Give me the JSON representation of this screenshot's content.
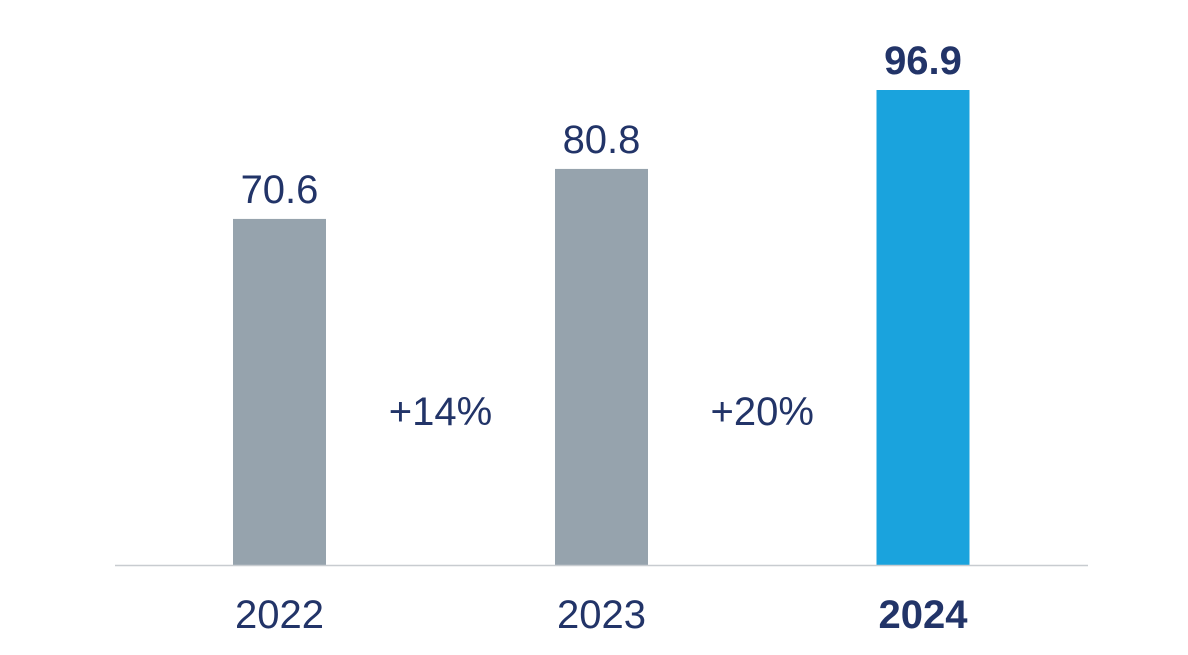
{
  "chart_data": {
    "type": "bar",
    "categories": [
      "2022",
      "2023",
      "2024"
    ],
    "values": [
      70.6,
      80.8,
      96.9
    ],
    "value_labels": [
      "70.6",
      "80.8",
      "96.9"
    ],
    "highlight_index": 2,
    "growth_annotations": [
      {
        "between": [
          "2022",
          "2023"
        ],
        "label": "+14%"
      },
      {
        "between": [
          "2023",
          "2024"
        ],
        "label": "+20%"
      }
    ],
    "colors": {
      "bar": "#96a3ad",
      "bar_highlight": "#1aa3dd",
      "text": "#223468",
      "axis": "#c8ccd0"
    },
    "title": "",
    "xlabel": "",
    "ylabel": "",
    "ylim": [
      0,
      100
    ],
    "grid": false,
    "legend": "none"
  }
}
